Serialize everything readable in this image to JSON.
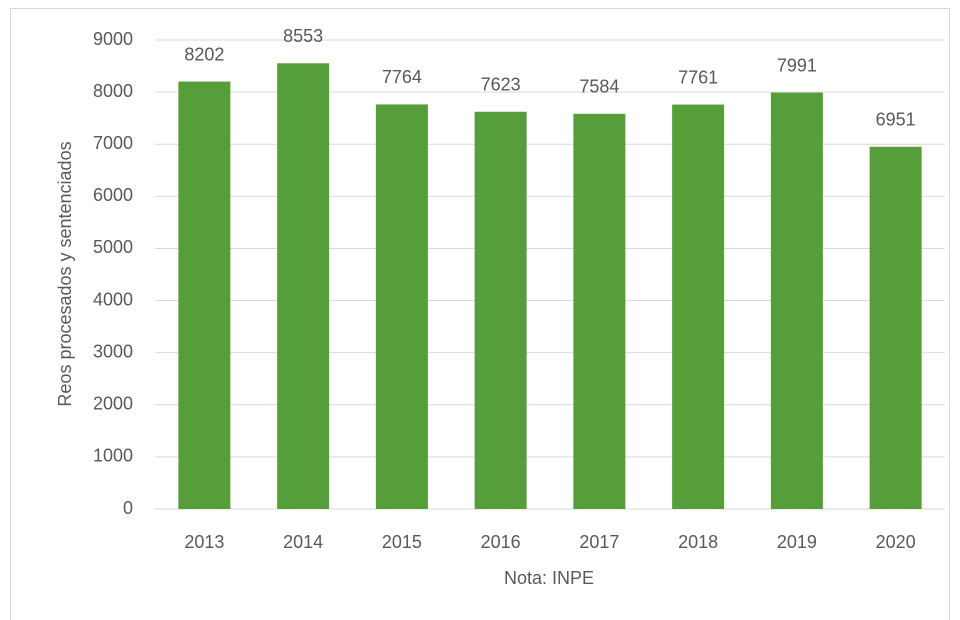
{
  "chart_data": {
    "type": "bar",
    "y_label": "Reos procesados y sentenciados",
    "x_label": "Nota: INPE",
    "categories": [
      "2013",
      "2014",
      "2015",
      "2016",
      "2017",
      "2018",
      "2019",
      "2020"
    ],
    "values": [
      8202,
      8553,
      7764,
      7623,
      7584,
      7761,
      7991,
      6951
    ],
    "color": "#559e3a",
    "ylim": [
      0,
      9000
    ],
    "yticks": [
      0,
      1000,
      2000,
      3000,
      4000,
      5000,
      6000,
      7000,
      8000,
      9000
    ],
    "grid": true
  }
}
